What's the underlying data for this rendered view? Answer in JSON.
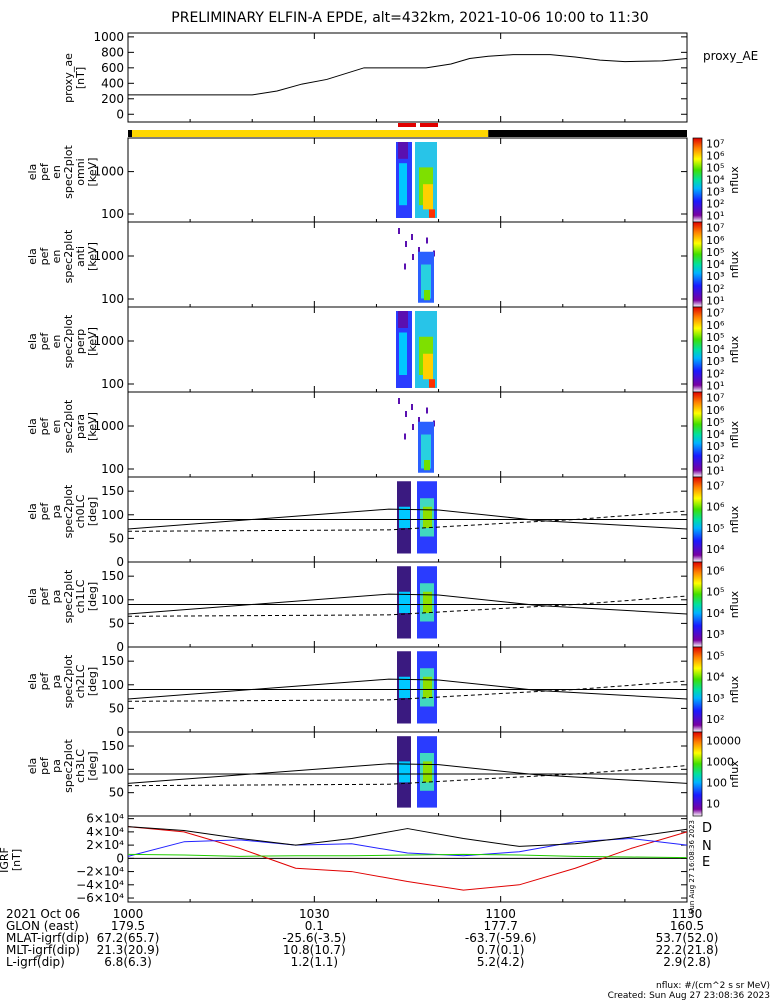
{
  "title": "PRELIMINARY ELFIN-A EPDE, alt=432km, 2021-10-06 10:00 to 11:30",
  "colors": {
    "proxy_line": "#000000",
    "day_bar": "#ffd700",
    "night_bar": "#000000",
    "sci_marker": "#e00000",
    "igrf_D": "#e00000",
    "igrf_N": "#2222ff",
    "igrf_E": "#22cc00"
  },
  "chart_data": [
    {
      "type": "line",
      "id": "proxy_ae",
      "ylabel": "proxy_ae\n[nT]",
      "legend": "proxy_AE",
      "ylim": [
        -100,
        1050
      ],
      "yticks": [
        "1000",
        "800",
        "600",
        "400",
        "200",
        "0"
      ],
      "x_minutes": [
        0,
        10,
        20,
        24,
        28,
        32,
        38,
        42,
        48,
        52,
        55,
        58,
        62,
        68,
        72,
        76,
        80,
        86,
        90
      ],
      "values": [
        250,
        250,
        250,
        300,
        390,
        450,
        600,
        600,
        600,
        650,
        720,
        750,
        770,
        770,
        740,
        700,
        680,
        690,
        720
      ]
    },
    {
      "type": "heatmap",
      "id": "en_omni",
      "ylabel": "ela\npef\nen\nspec2plot\nomni\n[keV]",
      "yticks": [
        "1000",
        "100"
      ],
      "zlabel": "nflux",
      "zticks": [
        "10⁷",
        "10⁶",
        "10⁵",
        "10⁴",
        "10³",
        "10²",
        "10¹"
      ]
    },
    {
      "type": "heatmap",
      "id": "en_anti",
      "ylabel": "ela\npef\nen\nspec2plot\nanti\n[keV]",
      "yticks": [
        "1000",
        "100"
      ],
      "zlabel": "nflux",
      "zticks": [
        "10⁷",
        "10⁶",
        "10⁵",
        "10⁴",
        "10³",
        "10²",
        "10¹"
      ]
    },
    {
      "type": "heatmap",
      "id": "en_perp",
      "ylabel": "ela\npef\nen\nspec2plot\nperp\n[keV]",
      "yticks": [
        "1000",
        "100"
      ],
      "zlabel": "nflux",
      "zticks": [
        "10⁷",
        "10⁶",
        "10⁵",
        "10⁴",
        "10³",
        "10²",
        "10¹"
      ]
    },
    {
      "type": "heatmap",
      "id": "en_para",
      "ylabel": "ela\npef\nen\nspec2plot\npara\n[keV]",
      "yticks": [
        "1000",
        "100"
      ],
      "zlabel": "nflux",
      "zticks": [
        "10⁷",
        "10⁶",
        "10⁵",
        "10⁴",
        "10³",
        "10²",
        "10¹"
      ]
    },
    {
      "type": "heatmap",
      "id": "pa_ch0",
      "ylabel": "ela\npef\npa\nspec2plot\nch0LC\n[deg]",
      "yticks": [
        "150",
        "100",
        "50",
        "0"
      ],
      "zlabel": "nflux",
      "zticks": [
        "10⁷",
        "10⁶",
        "10⁵",
        "10⁴"
      ]
    },
    {
      "type": "heatmap",
      "id": "pa_ch1",
      "ylabel": "ela\npef\npa\nspec2plot\nch1LC\n[deg]",
      "yticks": [
        "150",
        "100",
        "50",
        "0"
      ],
      "zlabel": "nflux",
      "zticks": [
        "10⁶",
        "10⁵",
        "10⁴",
        "10³"
      ]
    },
    {
      "type": "heatmap",
      "id": "pa_ch2",
      "ylabel": "ela\npef\npa\nspec2plot\nch2LC\n[deg]",
      "yticks": [
        "150",
        "100",
        "50",
        "0"
      ],
      "zlabel": "nflux",
      "zticks": [
        "10⁵",
        "10⁴",
        "10³",
        "10²"
      ]
    },
    {
      "type": "heatmap",
      "id": "pa_ch3",
      "ylabel": "ela\npef\npa\nspec2plot\nch3LC\n[deg]",
      "yticks": [
        "150",
        "100",
        "50"
      ],
      "zlabel": "nflux",
      "zticks": [
        "10000",
        "1000",
        "100",
        "10"
      ]
    },
    {
      "type": "line",
      "id": "igrf",
      "ylabel": "IGRF\n[nT]",
      "ylim": [
        -66000,
        64000
      ],
      "yticks": [
        "6×10⁴",
        "4×10⁴",
        "2×10⁴",
        "0",
        "−2×10⁴",
        "−4×10⁴",
        "−6×10⁴"
      ],
      "x_minutes": [
        0,
        9,
        18,
        27,
        36,
        45,
        54,
        63,
        72,
        81,
        90
      ],
      "series": [
        {
          "name": "D",
          "values": [
            48000,
            40000,
            15000,
            -15000,
            -20000,
            -35000,
            -48000,
            -40000,
            -15000,
            15000,
            40000
          ]
        },
        {
          "name": "N",
          "values": [
            3000,
            25000,
            28000,
            20000,
            22000,
            8000,
            4000,
            10000,
            25000,
            30000,
            20000
          ]
        },
        {
          "name": "E",
          "values": [
            6000,
            5000,
            3000,
            4000,
            4000,
            5000,
            6000,
            5000,
            3000,
            2000,
            1000
          ]
        },
        {
          "name": "",
          "values": [
            48000,
            42000,
            30000,
            20000,
            30000,
            45000,
            30000,
            18000,
            22000,
            32000,
            44000
          ]
        }
      ]
    }
  ],
  "xaxis": {
    "ticks": [
      "1000",
      "1030",
      "1100",
      "1130"
    ],
    "rows": [
      {
        "label": "2021 Oct 06",
        "vals": [
          "1000",
          "1030",
          "1100",
          "1130"
        ]
      },
      {
        "label": "GLON (east)",
        "vals": [
          "179.5",
          "0.1",
          "177.7",
          "160.5"
        ]
      },
      {
        "label": "MLAT-igrf(dip)",
        "vals": [
          "67.2(65.7)",
          "-25.6(-3.5)",
          "-63.7(-59.6)",
          "53.7(52.0)"
        ]
      },
      {
        "label": "MLT-igrf(dip)",
        "vals": [
          "21.3(20.9)",
          "10.8(10.7)",
          "0.7(0.1)",
          "22.2(21.8)"
        ]
      },
      {
        "label": "L-igrf(dip)",
        "vals": [
          "6.8(6.3)",
          "1.2(1.1)",
          "5.2(4.2)",
          "2.9(2.8)"
        ]
      }
    ]
  },
  "footer": {
    "units": "nflux: #/(cm^2 s sr MeV)",
    "created": "Created: Sun Aug 27 23:08:36 2023",
    "side_stamp": "Sun Aug 27 16:08:36 2023"
  }
}
